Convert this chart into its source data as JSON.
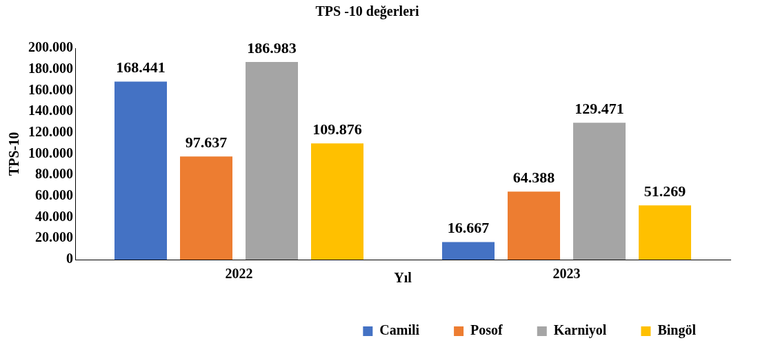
{
  "chart_data": {
    "type": "bar",
    "title": "TPS -10 değerleri",
    "xlabel": "Yıl",
    "ylabel": "TPS-10",
    "categories": [
      "2022",
      "2023"
    ],
    "series": [
      {
        "name": "Camili",
        "color": "#4472c4",
        "values": [
          168441,
          16667
        ],
        "value_labels": [
          "168.441",
          "16.667"
        ]
      },
      {
        "name": "Posof",
        "color": "#ed7d31",
        "values": [
          97637,
          64388
        ],
        "value_labels": [
          "97.637",
          "64.388"
        ]
      },
      {
        "name": "Karniyol",
        "color": "#a5a5a5",
        "values": [
          186983,
          129471
        ],
        "value_labels": [
          "186.983",
          "129.471"
        ]
      },
      {
        "name": "Bingöl",
        "color": "#ffc000",
        "values": [
          109876,
          51269
        ],
        "value_labels": [
          "109.876",
          "51.269"
        ]
      }
    ],
    "ylim": [
      0,
      200000
    ],
    "yticks": [
      0,
      {
        "value": 20000,
        "label": "20.000"
      },
      {
        "value": 40000,
        "label": "40.000"
      },
      {
        "value": 60000,
        "label": "60.000"
      },
      {
        "value": 80000,
        "label": "80.000"
      },
      {
        "value": 100000,
        "label": "100.000"
      },
      {
        "value": 120000,
        "label": "120.000"
      },
      {
        "value": 140000,
        "label": "140.000"
      },
      {
        "value": 160000,
        "label": "160.000"
      },
      {
        "value": 180000,
        "label": "180.000"
      },
      {
        "value": 200000,
        "label": "200.000"
      }
    ],
    "grid": false,
    "legend": "bottom right"
  }
}
